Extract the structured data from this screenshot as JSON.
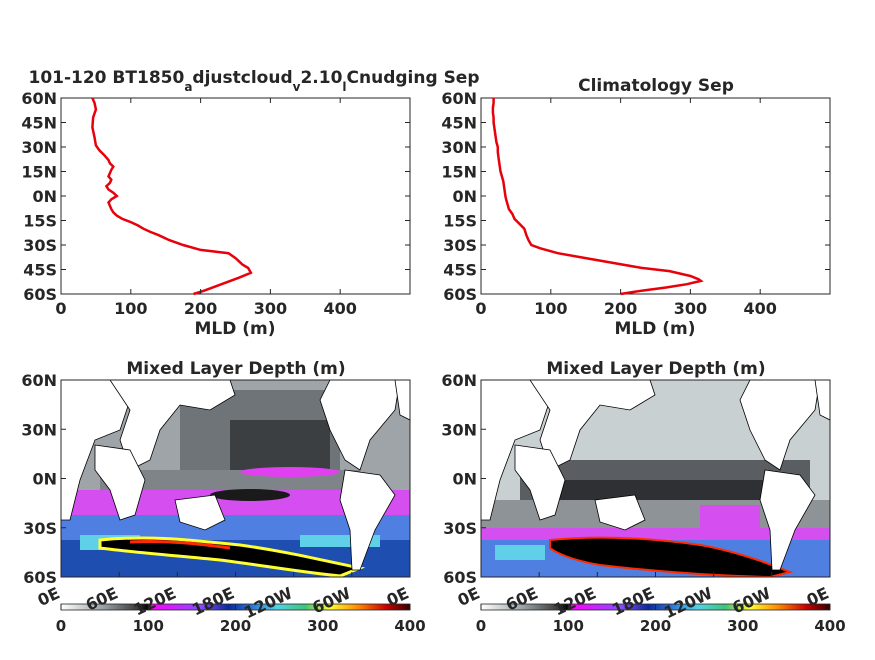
{
  "figure": {
    "profiles": [
      {
        "title_main": "101-120 BT1850",
        "title_sub1": "a",
        "title_mid1": "djustcloud",
        "title_sub2": "v",
        "title_mid2": "2.10",
        "title_sub3": "l",
        "title_tail": "Cnudging Sep",
        "xlabel": "MLD (m)"
      },
      {
        "title": "Climatology Sep",
        "xlabel": "MLD (m)"
      }
    ],
    "maps": [
      {
        "title": "Mixed Layer Depth (m)"
      },
      {
        "title": "Mixed Layer Depth (m)"
      }
    ],
    "profile_y_ticks": [
      "60N",
      "45N",
      "30N",
      "15N",
      "0N",
      "15S",
      "30S",
      "45S",
      "60S"
    ],
    "profile_x_ticks": [
      "0",
      "100",
      "200",
      "300",
      "400"
    ],
    "map_y_ticks": [
      "60N",
      "30N",
      "0N",
      "30S",
      "60S"
    ],
    "map_x_ticks": [
      "0E",
      "60E",
      "120E",
      "180E",
      "120W",
      "60W",
      "0E"
    ],
    "colorbar_ticks": [
      "0",
      "100",
      "200",
      "300",
      "400"
    ],
    "colorbar_colors": [
      "#ffffff",
      "#9aa3a8",
      "#3a3a3a",
      "#000000",
      "#ff00ff",
      "#8a4dff",
      "#0a2a9a",
      "#2f7ad9",
      "#4fd3e6",
      "#3fc37a",
      "#ffff33",
      "#ff8c00",
      "#cc0000",
      "#330000"
    ]
  },
  "chart_data": [
    {
      "type": "line",
      "title": "101-120 BT1850adjustcloudv2.10lCnudging Sep",
      "xlabel": "MLD (m)",
      "ylabel": "",
      "xlim": [
        0,
        500
      ],
      "ylim": [
        -60,
        60
      ],
      "series": [
        {
          "color": "#e8000b",
          "x": [
            190,
            205,
            230,
            255,
            272,
            268,
            260,
            255,
            250,
            240,
            200,
            175,
            155,
            140,
            128,
            118,
            110,
            100,
            88,
            80,
            75,
            72,
            70,
            68,
            72,
            80,
            75,
            68,
            65,
            70,
            72,
            68,
            70,
            72,
            75,
            70,
            68,
            62,
            55,
            50,
            48,
            45,
            46,
            50,
            48,
            45
          ],
          "y": [
            -60,
            -58,
            -54,
            -50,
            -47,
            -44,
            -42,
            -40,
            -38,
            -35,
            -33,
            -30,
            -27,
            -24,
            -22,
            -20,
            -18,
            -16,
            -14,
            -12,
            -10,
            -8,
            -6,
            -4,
            -2,
            0,
            2,
            4,
            6,
            8,
            10,
            12,
            14,
            16,
            18,
            20,
            22,
            25,
            28,
            31,
            36,
            42,
            48,
            53,
            57,
            60
          ]
        }
      ]
    },
    {
      "type": "line",
      "title": "Climatology Sep",
      "xlabel": "MLD (m)",
      "ylabel": "",
      "xlim": [
        0,
        500
      ],
      "ylim": [
        -60,
        60
      ],
      "series": [
        {
          "color": "#e8000b",
          "x": [
            200,
            230,
            265,
            295,
            315,
            312,
            300,
            270,
            230,
            190,
            150,
            110,
            85,
            72,
            68,
            65,
            62,
            55,
            48,
            45,
            40,
            38,
            36,
            35,
            34,
            33,
            32,
            30,
            28,
            27,
            26,
            25,
            24,
            24,
            22,
            21,
            20,
            19,
            18,
            18,
            17,
            17,
            18,
            18
          ],
          "y": [
            -60,
            -58,
            -56,
            -54,
            -52,
            -51,
            -49,
            -46,
            -44,
            -41,
            -38,
            -35,
            -32,
            -30,
            -27,
            -24,
            -20,
            -17,
            -14,
            -11,
            -8,
            -5,
            -2,
            0,
            3,
            6,
            9,
            12,
            15,
            18,
            21,
            24,
            27,
            30,
            33,
            36,
            39,
            42,
            45,
            48,
            51,
            54,
            57,
            60
          ]
        }
      ]
    }
  ]
}
